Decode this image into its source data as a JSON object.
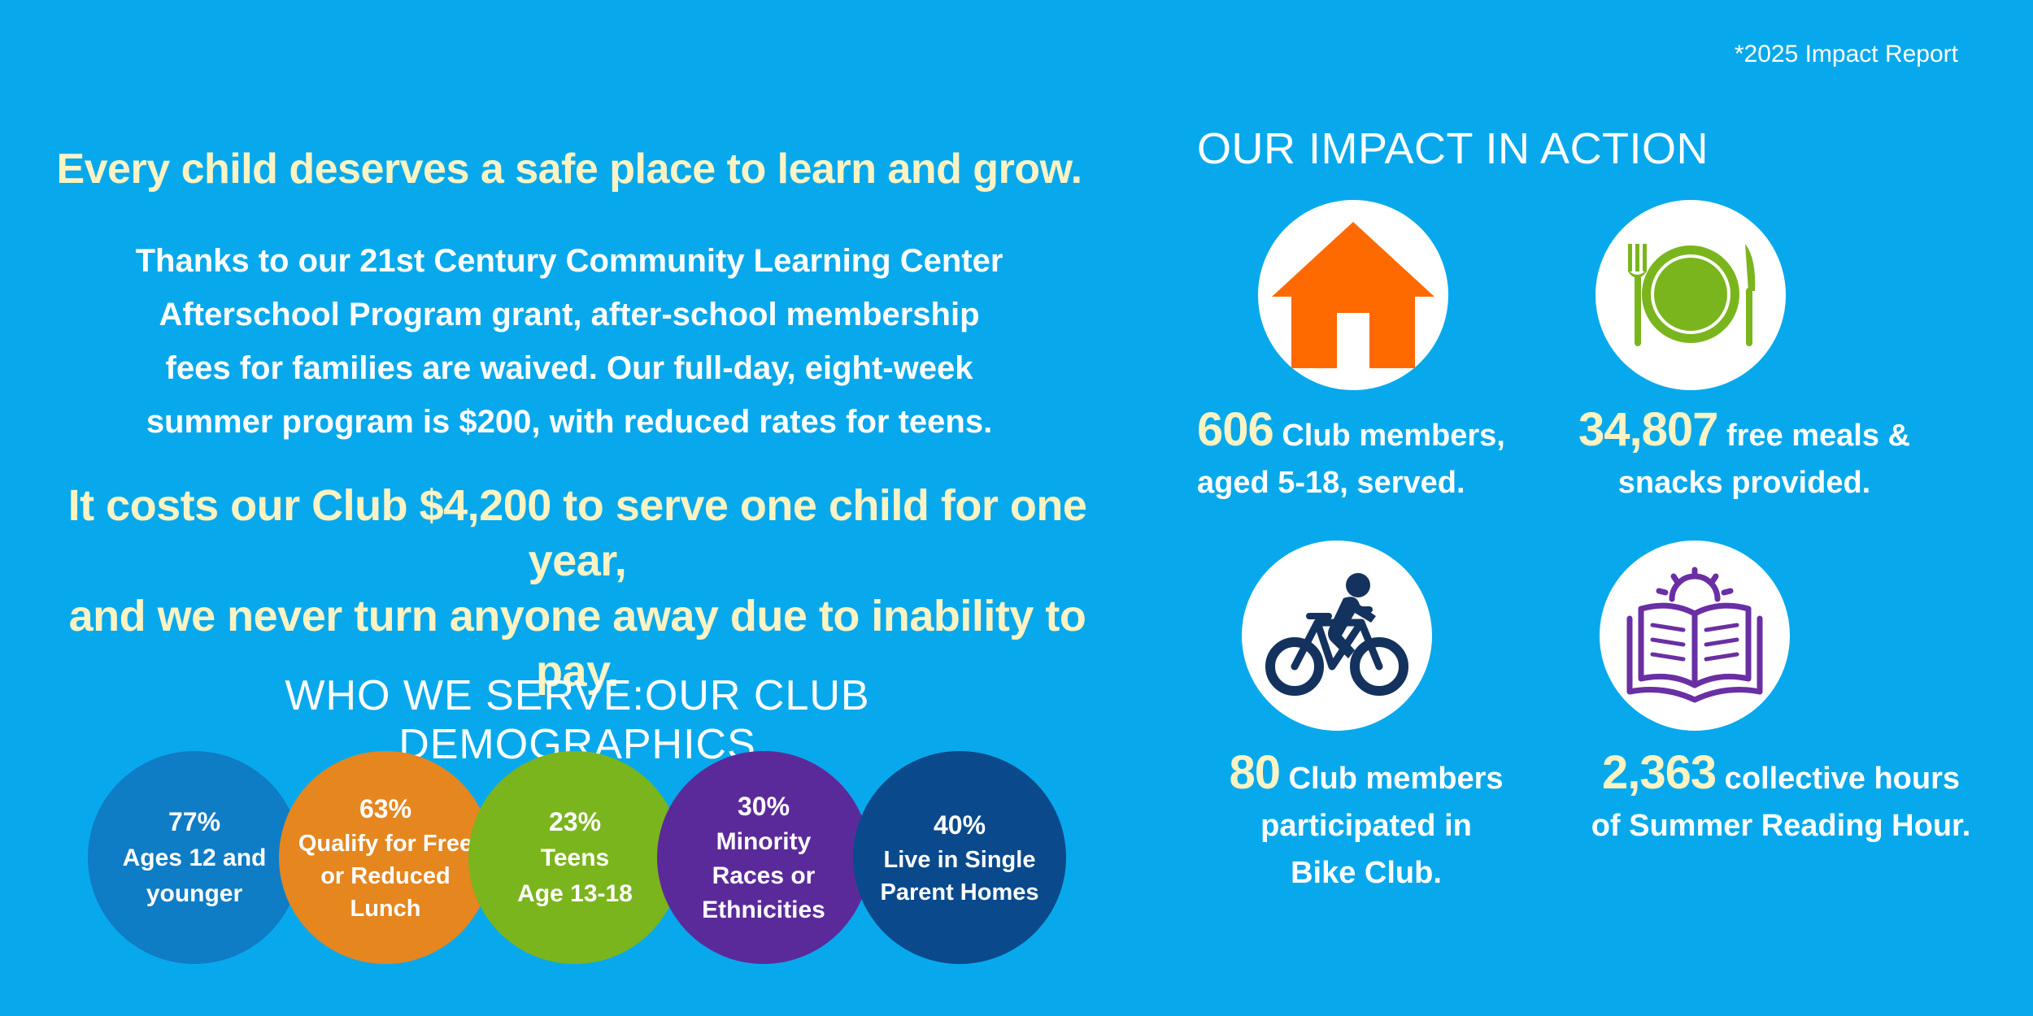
{
  "report_tag": "*2025 Impact Report",
  "left": {
    "headline": "Every child deserves a safe place to learn and grow.",
    "intro_lines": [
      "Thanks to our 21st Century Community Learning Center",
      "Afterschool Program grant, after-school membership",
      "fees for families are waived.  Our full-day, eight-week",
      "summer program is $200, with reduced rates for teens."
    ],
    "cost_lines": [
      "It costs our Club $4,200 to serve one child for one year,",
      "and we never turn anyone away due to inability to pay."
    ],
    "demographics_heading": "WHO WE SERVE:OUR CLUB DEMOGRAPHICS",
    "demographics": [
      {
        "pct": "77%",
        "label": "Ages 12 and\nyounger",
        "color": "#0f7cc6"
      },
      {
        "pct": "63%",
        "label": "Qualify for Free\nor Reduced\nLunch",
        "color": "#e5861f"
      },
      {
        "pct": "23%",
        "label": "Teens\nAge 13-18",
        "color": "#7ab51d"
      },
      {
        "pct": "30%",
        "label": "Minority\nRaces or\nEthnicities",
        "color": "#5b2a9a"
      },
      {
        "pct": "40%",
        "label": "Live in Single\nParent Homes",
        "color": "#0a4a8c"
      }
    ]
  },
  "right": {
    "impact_heading": "OUR IMPACT IN ACTION",
    "stats": [
      {
        "icon": "house-icon",
        "color": "#ff6a00",
        "number": "606",
        "text_1": " Club members,",
        "text_2": "aged 5-18, served.",
        "text_3": ""
      },
      {
        "icon": "plate-icon",
        "color": "#7ab51d",
        "number": "34,807",
        "text_1": " free meals &",
        "text_2": "snacks provided.",
        "text_3": ""
      },
      {
        "icon": "bicycle-icon",
        "color": "#14325e",
        "number": "80",
        "text_1": " Club members",
        "text_2": "participated in",
        "text_3": "Bike Club."
      },
      {
        "icon": "book-icon",
        "color": "#6a2fa3",
        "number": "2,363",
        "text_1": " collective hours",
        "text_2": "of Summer Reading Hour.",
        "text_3": ""
      }
    ]
  }
}
